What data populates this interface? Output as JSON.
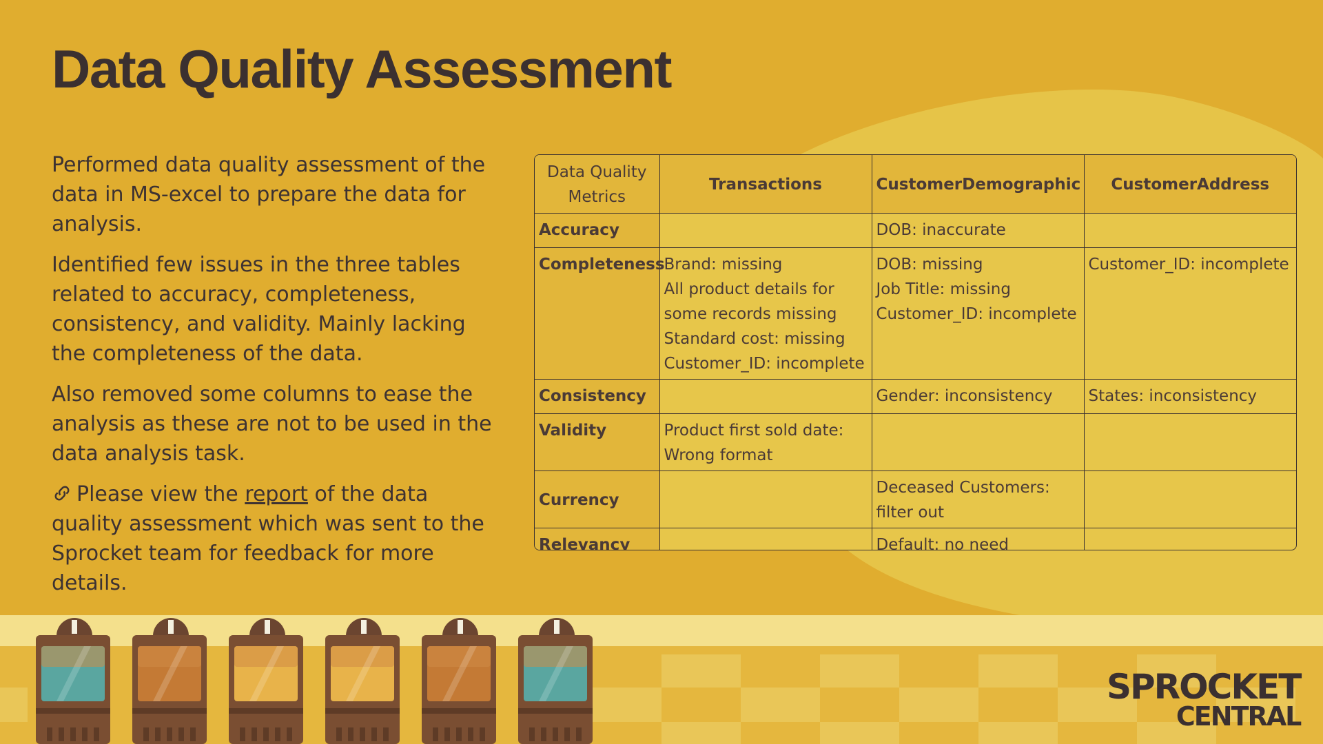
{
  "title": "Data Quality Assessment",
  "paragraphs": {
    "p1": "Performed data quality assessment of the data in MS-excel to prepare the data for analysis.",
    "p2": "Identified few issues in the three tables related to accuracy, completeness, consistency, and validity. Mainly lacking the completeness of the data.",
    "p3": "Also removed some columns to ease the analysis as these are not to be used in the data analysis task.",
    "p4_before": "Please view the ",
    "p4_link": "report",
    "p4_after": " of the data quality assessment which was sent to the Sprocket team for feedback for more details."
  },
  "table": {
    "corner": "Data Quality Metrics",
    "headers": [
      "Transactions",
      "CustomerDemographic",
      "CustomerAddress"
    ],
    "rows": [
      {
        "metric": "Accuracy",
        "cells": [
          [],
          [
            "DOB: inaccurate"
          ],
          []
        ]
      },
      {
        "metric": "Completeness",
        "cells": [
          [
            "Brand: missing",
            "All product details for some records missing",
            "Standard cost: missing",
            "Customer_ID: incomplete"
          ],
          [
            "DOB: missing",
            "Job Title: missing",
            "Customer_ID: incomplete"
          ],
          [
            "Customer_ID: incomplete"
          ]
        ]
      },
      {
        "metric": "Consistency",
        "cells": [
          [],
          [
            "Gender: inconsistency"
          ],
          [
            "States: inconsistency"
          ]
        ]
      },
      {
        "metric": "Validity",
        "cells": [
          [
            "Product first sold date: Wrong format"
          ],
          [],
          []
        ]
      },
      {
        "metric": "Currency",
        "cells": [
          [],
          [
            "Deceased Customers: filter out"
          ],
          []
        ]
      },
      {
        "metric": "Relevancy",
        "cells": [
          [],
          [
            "Default: no need"
          ],
          []
        ]
      }
    ]
  },
  "logo": {
    "line1": "SPROCKET",
    "line2": "CENTRAL"
  },
  "icons": {
    "link": "link-icon"
  },
  "colors": {
    "background": "#e0ad2f",
    "blob": "#e6c448",
    "text": "#3d3232"
  }
}
